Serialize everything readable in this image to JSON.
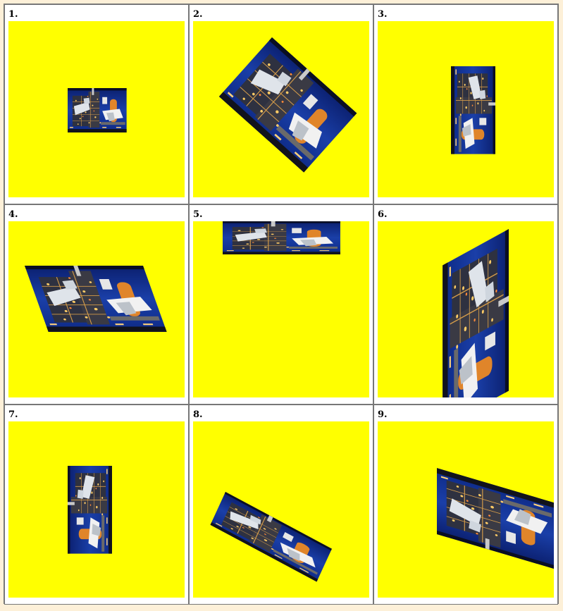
{
  "panels": [
    {
      "label": "1."
    },
    {
      "label": "2."
    },
    {
      "label": "3."
    },
    {
      "label": "4."
    },
    {
      "label": "5."
    },
    {
      "label": "6."
    },
    {
      "label": "7."
    },
    {
      "label": "8."
    },
    {
      "label": "9."
    }
  ],
  "colors": {
    "page_background": "#fdf0d8",
    "stage_background": "#ffff00",
    "photo_sky": "#1a3fa8",
    "border": "#777777"
  },
  "image_icon": "space-shuttle-launchpad-photo"
}
